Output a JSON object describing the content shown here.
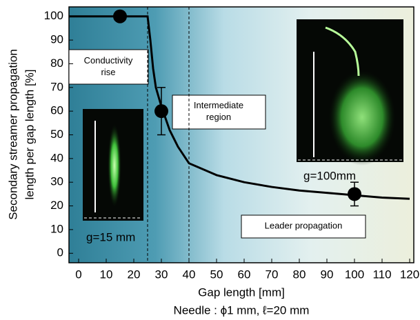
{
  "chart_data": {
    "type": "scatter",
    "x_label": "Gap length [mm]",
    "caption": "Needle : ϕ1 mm, ℓ=20 mm",
    "y_label": [
      "Secondary streamer propagation",
      "length per gap length [%]"
    ],
    "xlim": [
      -3.5,
      121.5
    ],
    "xticks": [
      0,
      10,
      20,
      30,
      40,
      50,
      60,
      70,
      80,
      90,
      100,
      110,
      120
    ],
    "ylim": [
      -4,
      104
    ],
    "yticks": [
      0,
      10,
      20,
      30,
      40,
      50,
      60,
      70,
      80,
      90,
      100
    ],
    "points": {
      "color": "#000000",
      "x": [
        15,
        30,
        100
      ],
      "values": [
        100,
        60,
        25
      ],
      "errors": [
        null,
        10,
        5
      ]
    },
    "fit": {
      "color": "#000000",
      "x": [
        -3.5,
        25,
        26,
        27,
        28,
        30,
        33,
        36,
        40,
        50,
        60,
        70,
        80,
        90,
        100,
        110,
        120
      ],
      "values": [
        100,
        100,
        90,
        78,
        70,
        62,
        52,
        45,
        38,
        33,
        30,
        28,
        26.5,
        25.5,
        24.5,
        23.5,
        23
      ]
    },
    "boundaries": [
      25,
      40
    ],
    "regions": [
      [
        "Conductivity",
        "rise"
      ],
      [
        "Intermediate",
        "region"
      ],
      [
        "Leader propagation"
      ]
    ],
    "images": [
      "g=15 mm",
      "g=100mm"
    ]
  }
}
